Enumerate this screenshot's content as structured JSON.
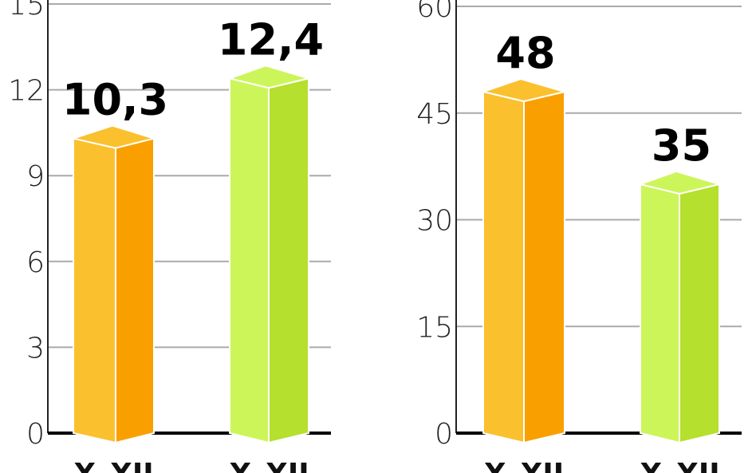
{
  "chart_data": [
    {
      "type": "bar",
      "categories": [
        "X–XII",
        "X–XII"
      ],
      "values": [
        10.3,
        12.4
      ],
      "value_labels": [
        "10,3",
        "12,4"
      ],
      "colors": [
        "#fbc02d",
        "#ccf55a"
      ],
      "side_colors": [
        "#f9a000",
        "#b5e02e"
      ],
      "ylim": [
        0,
        15
      ],
      "yticks": [
        0,
        3,
        6,
        9,
        12,
        15
      ],
      "grid": true
    },
    {
      "type": "bar",
      "categories": [
        "X–XII",
        "X–XII"
      ],
      "values": [
        48,
        35
      ],
      "colors": [
        "#fbc02d",
        "#ccf55a"
      ],
      "side_colors": [
        "#f9a000",
        "#b5e02e"
      ],
      "ylim": [
        0,
        60
      ],
      "yticks": [
        0,
        15,
        30,
        45,
        60
      ],
      "grid": true
    }
  ]
}
